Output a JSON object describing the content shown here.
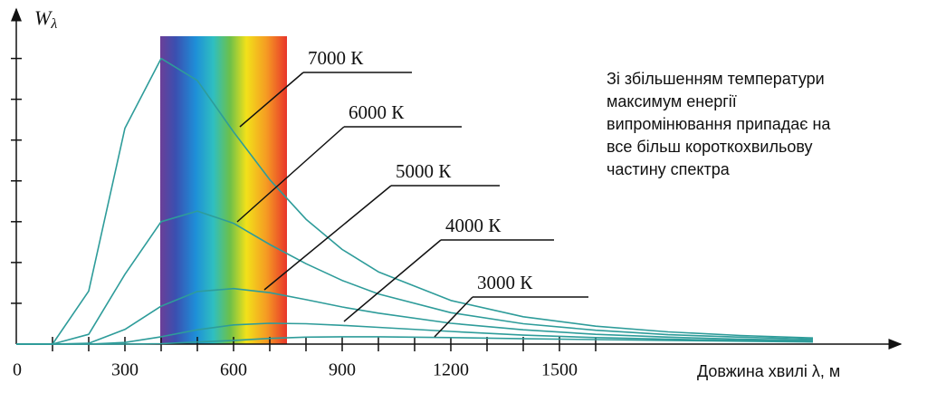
{
  "chart_data": {
    "type": "line",
    "y_label": {
      "symbol": "W",
      "subscript": "λ"
    },
    "x_label": "Довжина хвилі  λ, м",
    "annotation": [
      "Зі збільшенням температури",
      "максимум енергії",
      "випромінювання припадає на",
      "все більш короткохвильову",
      "частину спектра"
    ],
    "x": [
      0,
      100,
      200,
      300,
      400,
      500,
      600,
      700,
      800,
      900,
      1000,
      1200,
      1400,
      1600,
      1800,
      2000,
      2200
    ],
    "xlim": [
      0,
      2430
    ],
    "xticks": [
      0,
      300,
      600,
      900,
      1200,
      1500
    ],
    "x_minor_ticks": [
      100,
      200,
      400,
      500,
      700,
      800,
      1000,
      1100,
      1300,
      1400,
      1600
    ],
    "ylim": [
      0,
      8.1
    ],
    "yticks": [
      1,
      2,
      3,
      4,
      5,
      6,
      7
    ],
    "series": [
      {
        "name": "7000 К",
        "color": "#2e9c9a",
        "values": [
          0,
          0,
          1.3,
          5.29,
          7.0,
          6.46,
          5.2,
          4.03,
          3.06,
          2.32,
          1.77,
          1.07,
          0.67,
          0.44,
          0.3,
          0.21,
          0.15
        ]
      },
      {
        "name": "6000 К",
        "color": "#2e9c9a",
        "values": [
          0,
          0,
          0.24,
          1.71,
          3.0,
          3.26,
          2.96,
          2.44,
          1.97,
          1.56,
          1.23,
          0.77,
          0.5,
          0.34,
          0.23,
          0.17,
          0.12
        ]
      },
      {
        "name": "5000 К",
        "color": "#2e9c9a",
        "values": [
          0,
          0,
          0.02,
          0.36,
          0.93,
          1.29,
          1.36,
          1.26,
          1.09,
          0.91,
          0.76,
          0.51,
          0.35,
          0.24,
          0.17,
          0.12,
          0.09
        ]
      },
      {
        "name": "4000 К",
        "color": "#2e9c9a",
        "values": [
          0,
          0,
          0,
          0.04,
          0.18,
          0.35,
          0.47,
          0.51,
          0.5,
          0.46,
          0.41,
          0.31,
          0.22,
          0.16,
          0.12,
          0.09,
          0.07
        ]
      },
      {
        "name": "3000 К",
        "color": "#2e9c9a",
        "values": [
          0,
          0,
          0,
          0,
          0.01,
          0.05,
          0.09,
          0.14,
          0.17,
          0.18,
          0.18,
          0.16,
          0.13,
          0.11,
          0.09,
          0.07,
          0.05
        ]
      }
    ]
  }
}
